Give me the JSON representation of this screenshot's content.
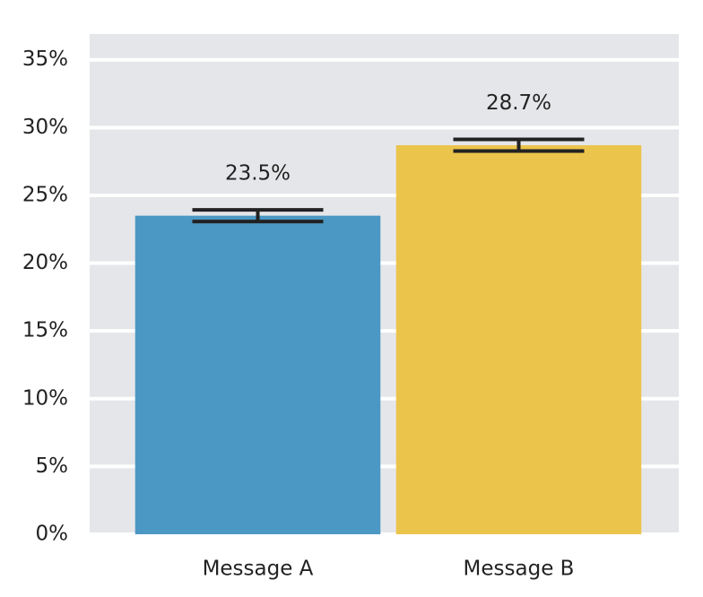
{
  "chart_data": {
    "type": "bar",
    "categories": [
      "Message A",
      "Message B"
    ],
    "values": [
      23.5,
      28.7
    ],
    "value_labels": [
      "23.5%",
      "28.7%"
    ],
    "errors": [
      0.43,
      0.43
    ],
    "colors": [
      "#4a98c3",
      "#ebc44c"
    ],
    "ylim": [
      0,
      36.9
    ],
    "yticks": [
      {
        "value": 0,
        "label": "0%"
      },
      {
        "value": 5,
        "label": "5%"
      },
      {
        "value": 10,
        "label": "10%"
      },
      {
        "value": 15,
        "label": "15%"
      },
      {
        "value": 20,
        "label": "20%"
      },
      {
        "value": 25,
        "label": "25%"
      },
      {
        "value": 30,
        "label": "30%"
      },
      {
        "value": 35,
        "label": "35%"
      }
    ],
    "grid": true
  }
}
